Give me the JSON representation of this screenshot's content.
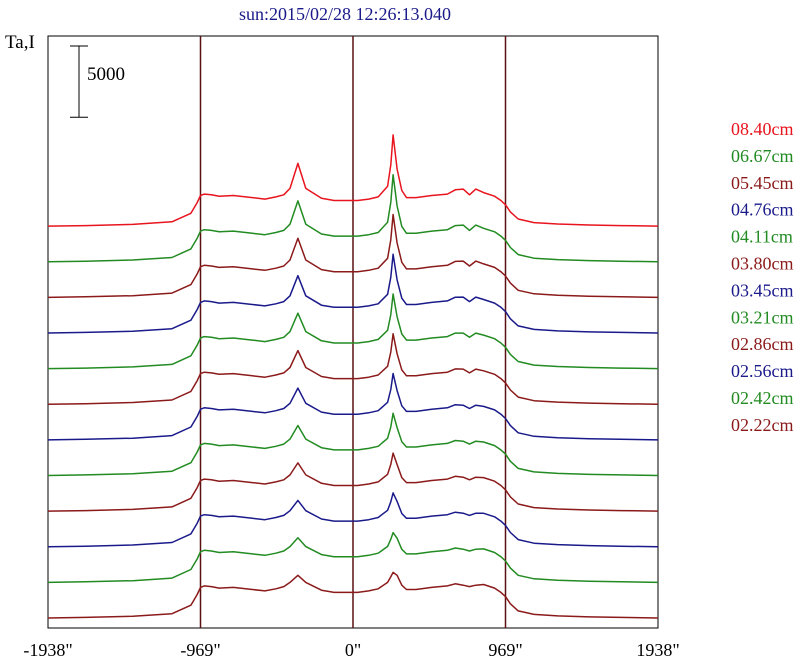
{
  "chart_data": {
    "type": "line",
    "title": "sun:2015/02/28 12:26:13.040",
    "ylabel": "Ta,I",
    "scale_bar_label": "5000",
    "scale_bar_value": 5000,
    "x_ticks": [
      {
        "value": -1938,
        "label": "-1938\""
      },
      {
        "value": -969,
        "label": "-969\""
      },
      {
        "value": 0,
        "label": "0\""
      },
      {
        "value": 969,
        "label": "969\""
      },
      {
        "value": 1938,
        "label": "1938\""
      }
    ],
    "vlines": [
      -969,
      0,
      969
    ],
    "xlim": [
      -1938,
      1938
    ],
    "series_offset": 2500,
    "profile": {
      "x": [
        -1938,
        -1700,
        -1400,
        -1150,
        -1030,
        -990,
        -969,
        -945,
        -900,
        -850,
        -760,
        -640,
        -560,
        -490,
        -440,
        -400,
        -350,
        -300,
        -200,
        -120,
        -70,
        -20,
        30,
        100,
        160,
        220,
        240,
        255,
        280,
        310,
        340,
        400,
        500,
        600,
        650,
        700,
        740,
        780,
        830,
        900,
        940,
        969,
        1000,
        1050,
        1150,
        1300,
        1500,
        1700,
        1938
      ],
      "base": [
        0,
        40,
        120,
        300,
        900,
        1650,
        2150,
        2250,
        2200,
        2100,
        2150,
        2000,
        1900,
        2050,
        2200,
        2500,
        3000,
        2500,
        1950,
        1800,
        1800,
        1800,
        1800,
        1900,
        2050,
        2500,
        2900,
        3200,
        3000,
        2300,
        2000,
        2000,
        2150,
        2250,
        2400,
        2300,
        2200,
        2300,
        2350,
        2100,
        1800,
        1500,
        1000,
        500,
        250,
        150,
        80,
        40,
        0
      ],
      "bump_grow": [
        0,
        0,
        0,
        0,
        0,
        0,
        0,
        0,
        0,
        0,
        0,
        0,
        0,
        0,
        0,
        150,
        1400,
        150,
        0,
        0,
        0,
        0,
        0,
        0,
        0,
        300,
        1400,
        3200,
        1000,
        200,
        0,
        0,
        0,
        0,
        150,
        300,
        0,
        300,
        0,
        0,
        0,
        0,
        0,
        0,
        0,
        0,
        0,
        0,
        0
      ]
    },
    "series": [
      {
        "name": "02.22cm",
        "color": "#8b1a1a",
        "index": 0
      },
      {
        "name": "02.42cm",
        "color": "#228b22",
        "index": 1
      },
      {
        "name": "02.56cm",
        "color": "#1a1a8b",
        "index": 2
      },
      {
        "name": "02.86cm",
        "color": "#8b1a1a",
        "index": 3
      },
      {
        "name": "03.21cm",
        "color": "#228b22",
        "index": 4
      },
      {
        "name": "03.45cm",
        "color": "#1a1a8b",
        "index": 5
      },
      {
        "name": "03.80cm",
        "color": "#8b1a1a",
        "index": 6
      },
      {
        "name": "04.11cm",
        "color": "#228b22",
        "index": 7
      },
      {
        "name": "04.76cm",
        "color": "#1a1a8b",
        "index": 8
      },
      {
        "name": "05.45cm",
        "color": "#8b1a1a",
        "index": 9
      },
      {
        "name": "06.67cm",
        "color": "#228b22",
        "index": 10
      },
      {
        "name": "08.40cm",
        "color": "#e8141e",
        "index": 11
      }
    ]
  }
}
